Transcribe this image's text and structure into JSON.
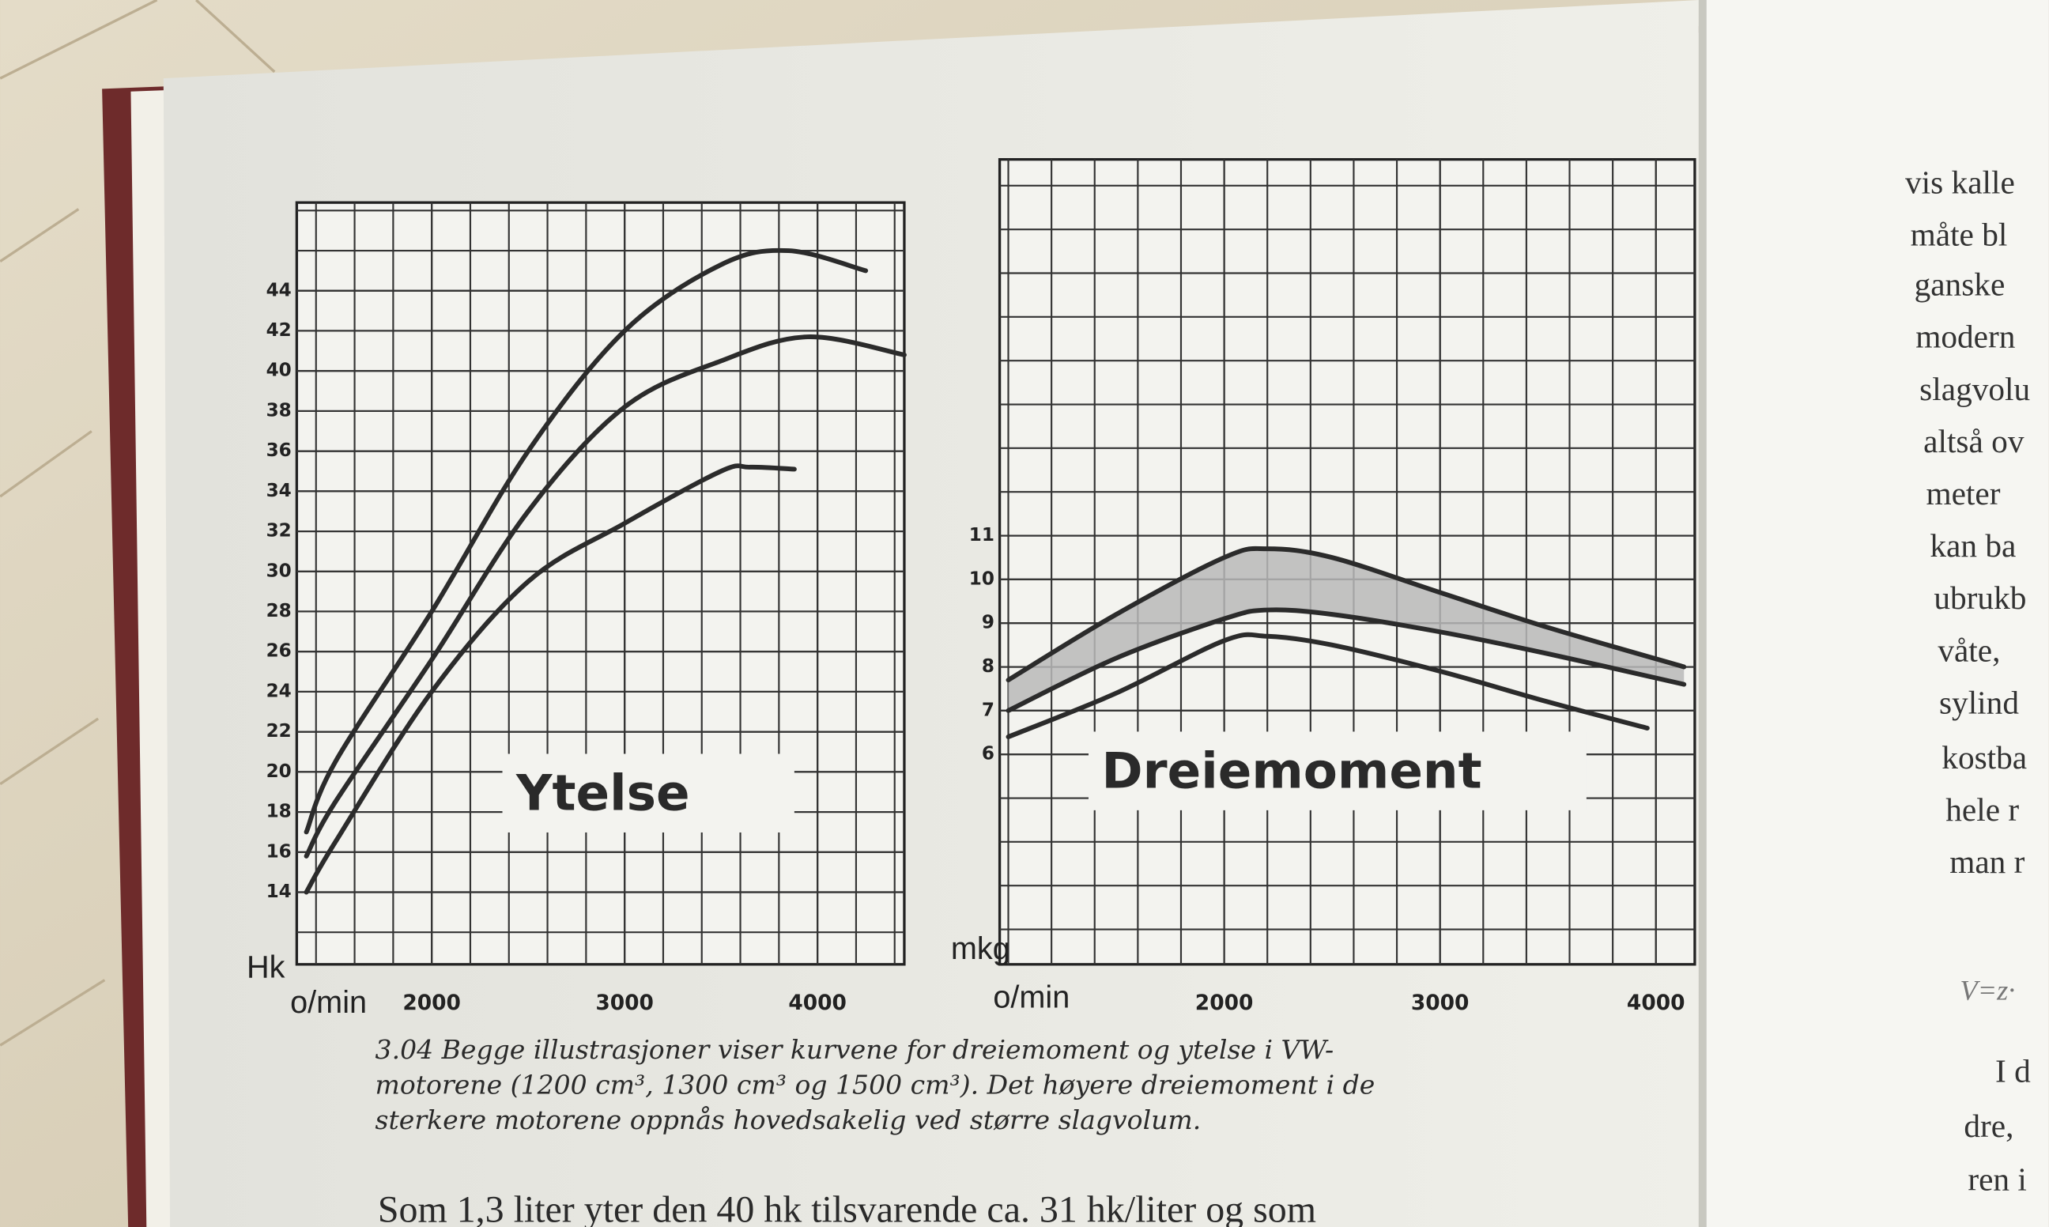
{
  "chart_data": [
    {
      "type": "line",
      "title": "Ytelse",
      "y_label": "Hk",
      "x_label": "o/min",
      "xlim": [
        1300,
        4450
      ],
      "ylim": [
        10.4,
        48.4
      ],
      "xticks": [
        2000,
        3000,
        4000
      ],
      "yticks": [
        14,
        16,
        18,
        20,
        22,
        24,
        26,
        28,
        30,
        32,
        34,
        36,
        38,
        40,
        42,
        44
      ],
      "grid": true,
      "series": [
        {
          "color": "#2b2b2b",
          "x": [
            1350,
            1500,
            2000,
            2500,
            3000,
            3500,
            3850,
            4250
          ],
          "values": [
            17,
            20.5,
            28,
            36,
            42,
            45.3,
            46,
            45
          ]
        },
        {
          "color": "#2b2b2b",
          "x": [
            1350,
            1500,
            2000,
            2500,
            3000,
            3500,
            3950,
            4450
          ],
          "values": [
            15.8,
            18.5,
            25.6,
            33,
            38.2,
            40.5,
            41.7,
            40.8
          ]
        },
        {
          "color": "#2b2b2b",
          "x": [
            1350,
            1500,
            2000,
            2500,
            3000,
            3500,
            3650,
            3880
          ],
          "values": [
            14,
            16.5,
            24,
            29.5,
            32.4,
            35,
            35.2,
            35.1
          ]
        }
      ]
    },
    {
      "type": "line",
      "title": "Dreiemoment",
      "y_label": "mkg",
      "x_label": "o/min",
      "xlim": [
        960,
        4180
      ],
      "ylim": [
        1.2,
        19.6
      ],
      "xticks": [
        2000,
        3000,
        4000
      ],
      "yticks": [
        6,
        7,
        8,
        9,
        10,
        11
      ],
      "grid": true,
      "shaded_band": {
        "between_series": [
          0,
          1
        ],
        "color": "#b9b9b9"
      },
      "series": [
        {
          "color": "#2b2b2b",
          "x": [
            1000,
            1500,
            2000,
            2200,
            2500,
            3000,
            3500,
            4130
          ],
          "values": [
            7.7,
            9.2,
            10.5,
            10.7,
            10.5,
            9.7,
            8.9,
            8.0
          ]
        },
        {
          "color": "#2b2b2b",
          "x": [
            1000,
            1500,
            2000,
            2200,
            2500,
            3000,
            3500,
            4130
          ],
          "values": [
            7.0,
            8.2,
            9.1,
            9.3,
            9.2,
            8.8,
            8.3,
            7.6
          ]
        },
        {
          "color": "#2b2b2b",
          "x": [
            1000,
            1500,
            2000,
            2200,
            2500,
            3000,
            3500,
            3960
          ],
          "values": [
            6.4,
            7.4,
            8.6,
            8.7,
            8.5,
            7.9,
            7.2,
            6.6
          ]
        }
      ]
    }
  ],
  "caption": [
    "3.04  Begge illustrasjoner viser kurvene for dreiemoment og ytelse i VW-",
    "motorene (1200 cm³, 1300 cm³ og 1500 cm³). Det høyere dreiemoment i de",
    "sterkere motorene oppnås hovedsakelig ved større slagvolum."
  ],
  "body_text": "Som 1,3 liter yter den 40 hk tilsvarende ca. 31 hk/liter og som",
  "facing_page_lines": [
    "vis kalle",
    "måte bl",
    "ganske",
    "modern",
    "slagvolu",
    "altså ov",
    "meter",
    "kan ba",
    "ubrukb",
    "våte,",
    "sylind",
    "kostba",
    "hele r",
    "man r",
    "V=z·",
    "I d",
    "dre,",
    "ren i"
  ]
}
